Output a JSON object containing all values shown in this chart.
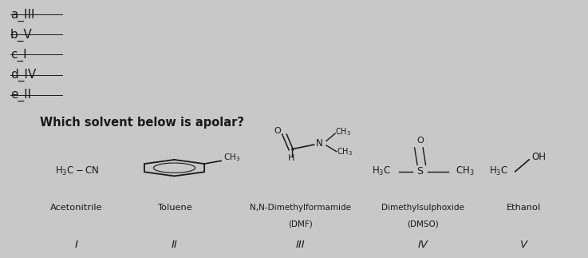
{
  "title_options": [
    "a_III",
    "b_V",
    "c_I",
    "d_IV",
    "e_II"
  ],
  "question": "Which solvent below is apolar?",
  "bg_color": "#c8c8c8",
  "panel_bg": "#dcdcdc",
  "text_color": "#1a1a1a",
  "font_size_options": 11,
  "font_size_question": 10.5,
  "font_size_name": 8.2,
  "font_size_roman": 9.5,
  "font_size_formula": 8.5
}
